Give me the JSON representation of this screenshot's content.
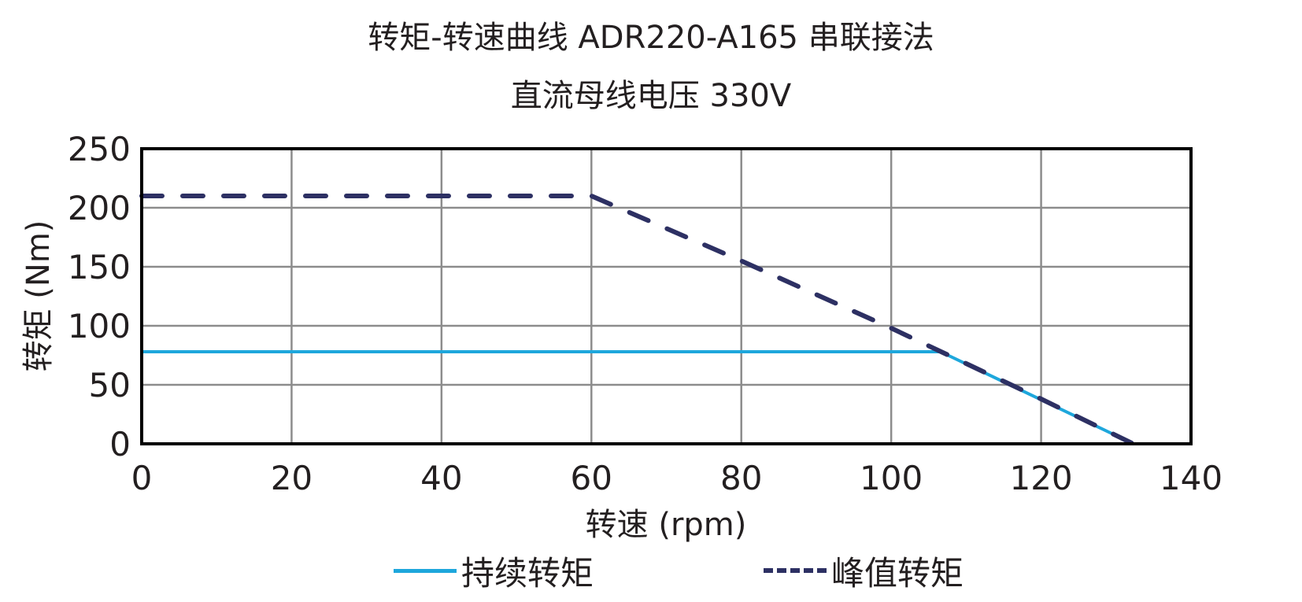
{
  "chart_data": {
    "type": "line",
    "title": "转矩-转速曲线 ADR220-A165 串联接法",
    "subtitle": "直流母线电压 330V",
    "xlabel": "转速 (rpm)",
    "ylabel": "转矩 (Nm)",
    "xlim": [
      0,
      140
    ],
    "ylim": [
      0,
      250
    ],
    "xticks": [
      0,
      20,
      40,
      60,
      80,
      100,
      120,
      140
    ],
    "yticks": [
      0,
      50,
      100,
      150,
      200,
      250
    ],
    "grid": true,
    "legend_position": "bottom",
    "series": [
      {
        "name": "持续转矩",
        "style": "solid",
        "color": "#1EA7DC",
        "x": [
          0,
          106.6,
          132.3
        ],
        "y": [
          78,
          78,
          0
        ]
      },
      {
        "name": "峰值转矩",
        "style": "dashed",
        "color": "#2D3063",
        "x": [
          0,
          60,
          80,
          100,
          120,
          132.3
        ],
        "y": [
          210,
          210,
          155,
          98,
          38,
          0
        ]
      }
    ]
  },
  "header": {
    "title": "转矩-转速曲线 ADR220-A165 串联接法",
    "subtitle": "直流母线电压 330V"
  },
  "axes": {
    "xlabel": "转速 (rpm)",
    "ylabel": "转矩 (Nm)",
    "xticks": [
      "0",
      "20",
      "40",
      "60",
      "80",
      "100",
      "120",
      "140"
    ],
    "yticks": [
      "0",
      "50",
      "100",
      "150",
      "200",
      "250"
    ]
  },
  "legend": {
    "continuous": "持续转矩",
    "peak": "峰值转矩"
  }
}
